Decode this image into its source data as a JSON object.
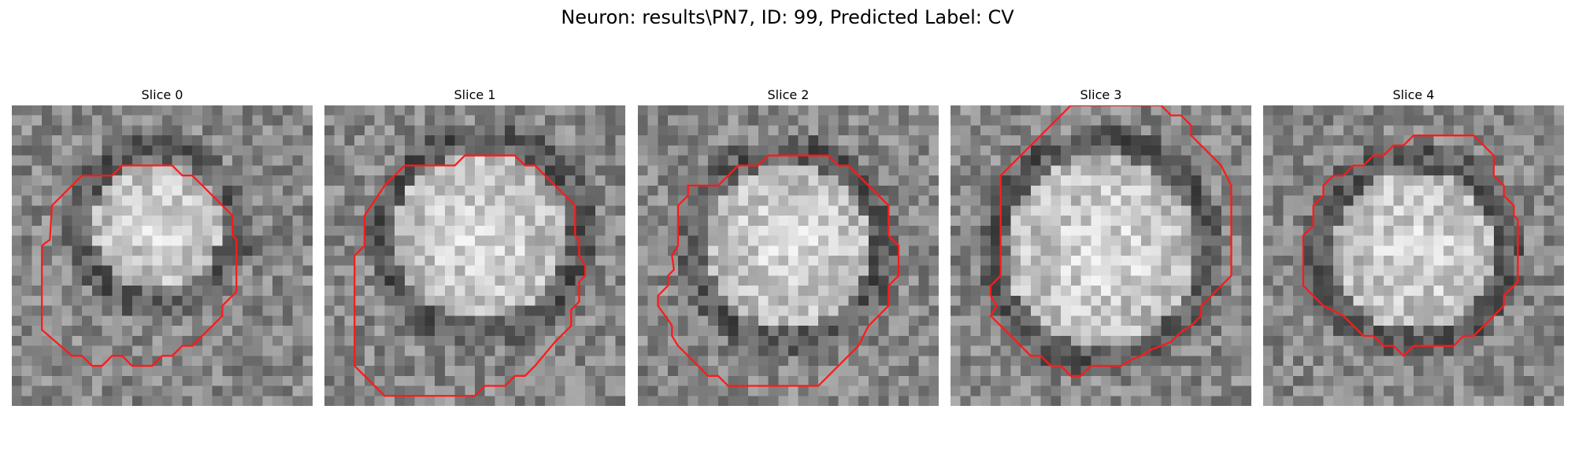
{
  "figure": {
    "title": "Neuron: results\\PN7, ID: 99, Predicted Label: CV"
  },
  "panels": [
    {
      "title": "Slice 0",
      "seed": 11,
      "cx": 14.5,
      "cy": 12.0,
      "r": 6.5,
      "ring": 3.0
    },
    {
      "title": "Slice 1",
      "seed": 23,
      "cx": 15.5,
      "cy": 13.0,
      "r": 8.5,
      "ring": 3.0
    },
    {
      "title": "Slice 2",
      "seed": 37,
      "cx": 15.0,
      "cy": 14.0,
      "r": 8.0,
      "ring": 3.0
    },
    {
      "title": "Slice 3",
      "seed": 41,
      "cx": 15.0,
      "cy": 14.5,
      "r": 9.5,
      "ring": 3.0
    },
    {
      "title": "Slice 4",
      "seed": 53,
      "cx": 15.0,
      "cy": 14.5,
      "r": 8.0,
      "ring": 3.0
    }
  ],
  "contour_color": "#ff1a1a"
}
